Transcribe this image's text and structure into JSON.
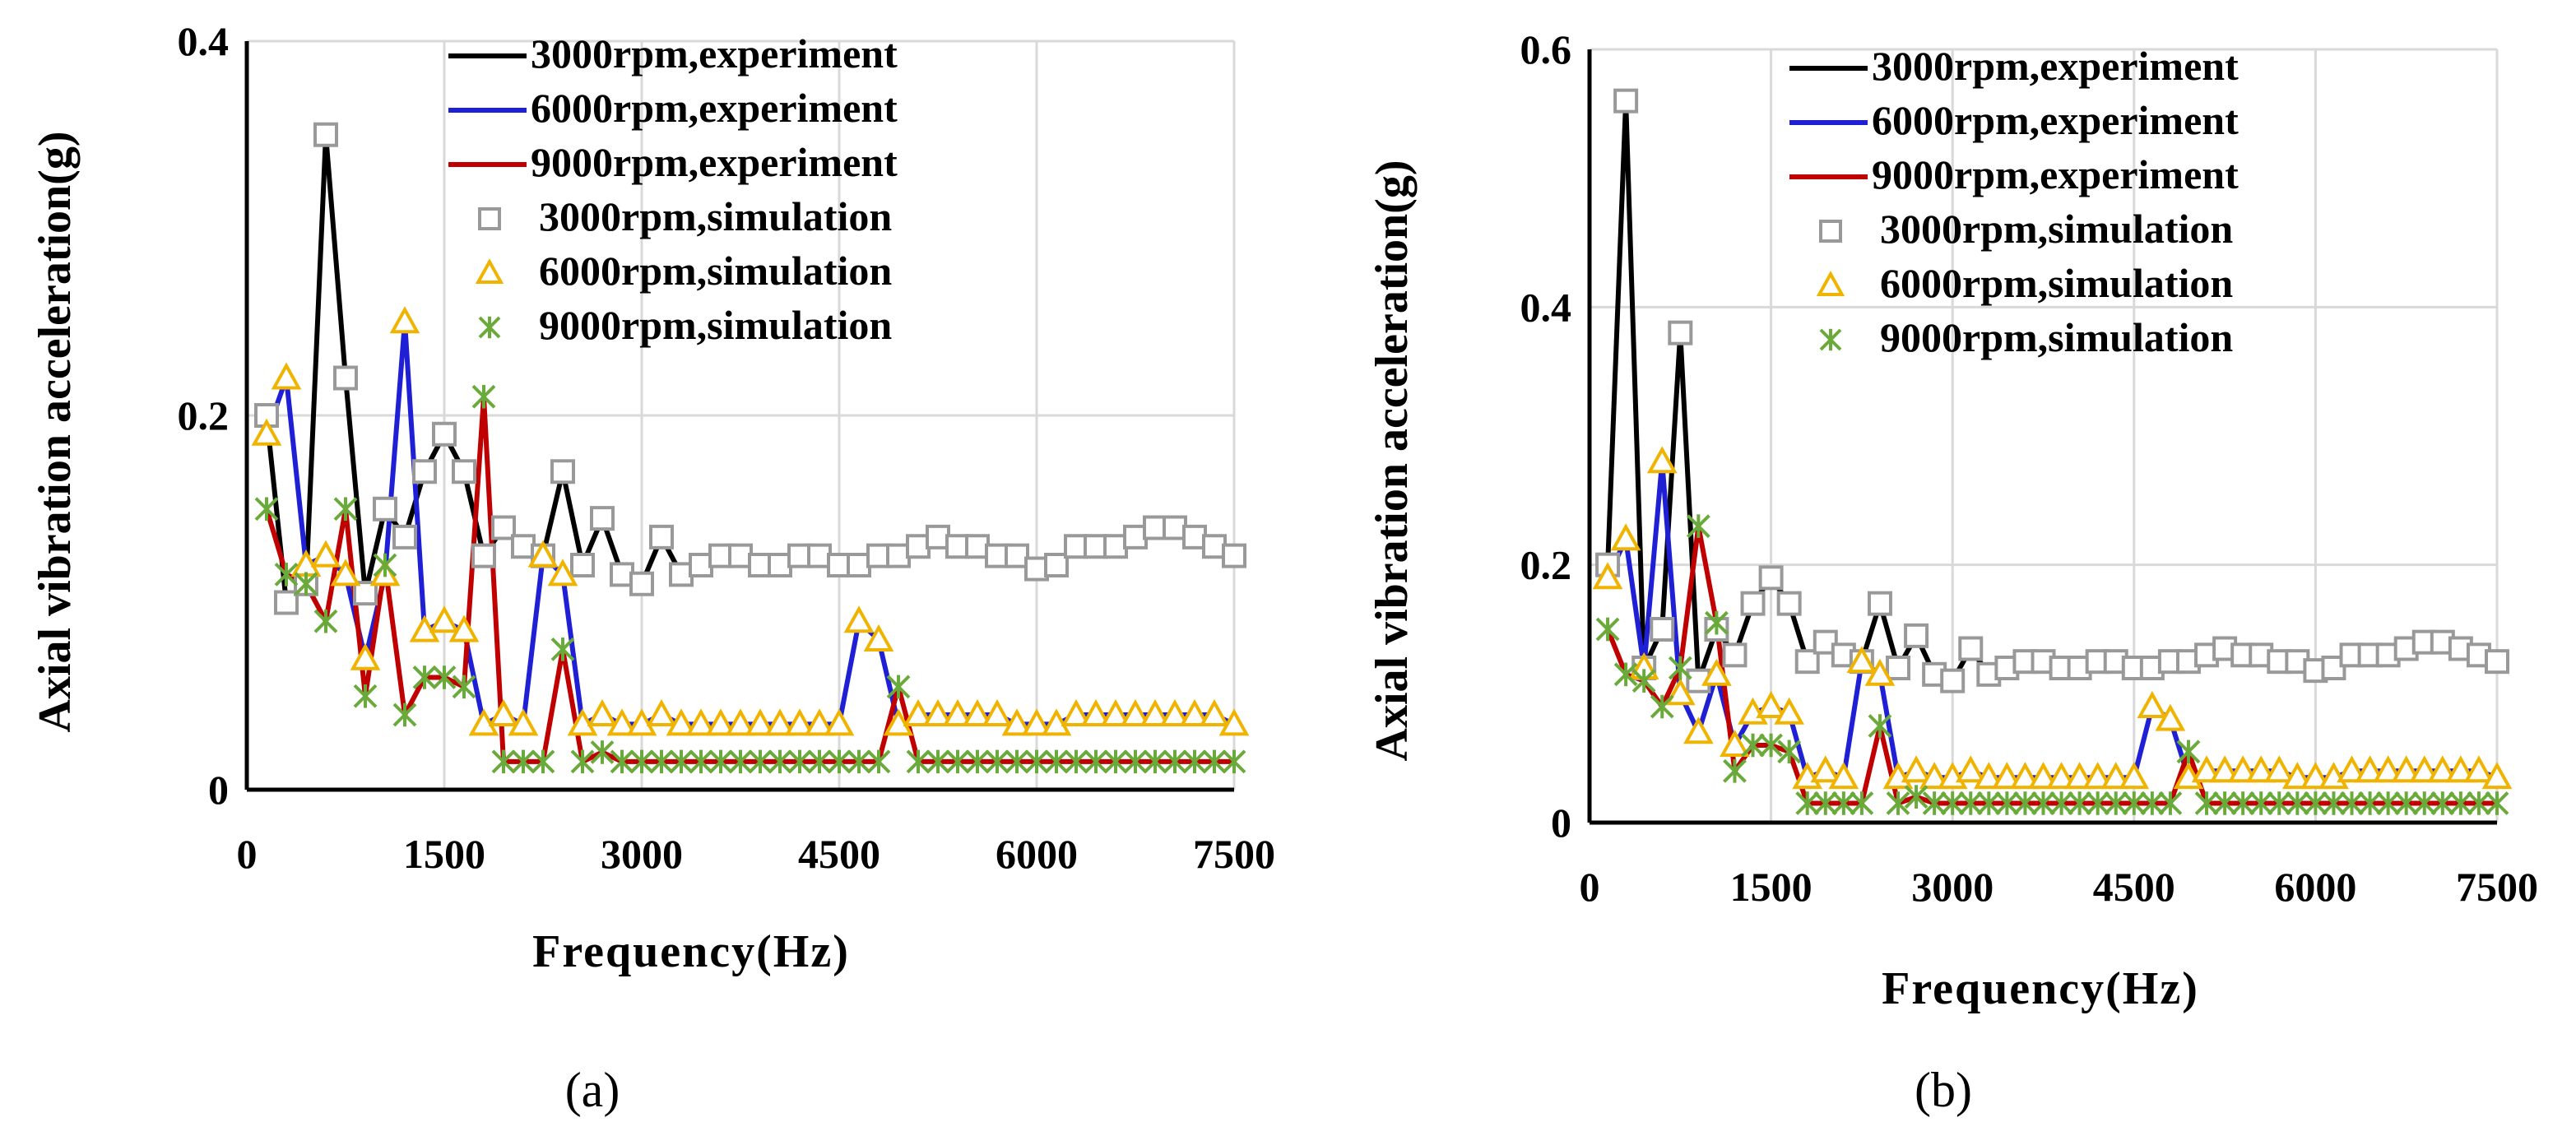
{
  "chart_data": [
    {
      "type": "line",
      "caption": "(a)",
      "xlabel": "Frequency(Hz)",
      "ylabel": "Axial vibration acceleration(g)",
      "xlim": [
        0,
        7500
      ],
      "ylim": [
        0,
        0.4
      ],
      "xticks": [
        0,
        1500,
        3000,
        4500,
        6000,
        7500
      ],
      "yticks": [
        0,
        0.2,
        0.4
      ],
      "xtick_labels": [
        "0",
        "1500",
        "3000",
        "4500",
        "6000",
        "7500"
      ],
      "ytick_labels": [
        "0",
        "0.2",
        "0.4"
      ],
      "grid": true,
      "legend_position": "top-right",
      "x": [
        150,
        300,
        450,
        600,
        750,
        900,
        1050,
        1200,
        1350,
        1500,
        1650,
        1800,
        1950,
        2100,
        2250,
        2400,
        2550,
        2700,
        2850,
        3000,
        3150,
        3300,
        3450,
        3600,
        3750,
        3900,
        4050,
        4200,
        4350,
        4500,
        4650,
        4800,
        4950,
        5100,
        5250,
        5400,
        5550,
        5700,
        5850,
        6000,
        6150,
        6300,
        6450,
        6600,
        6750,
        6900,
        7050,
        7200,
        7350,
        7500
      ],
      "series": [
        {
          "name": "3000rpm,experiment",
          "color": "#000000",
          "marker": "line",
          "values": [
            0.2,
            0.1,
            0.11,
            0.35,
            0.22,
            0.105,
            0.15,
            0.135,
            0.17,
            0.19,
            0.17,
            0.125,
            0.14,
            0.13,
            0.125,
            0.17,
            0.12,
            0.145,
            0.115,
            0.11,
            0.135,
            0.115,
            0.12,
            0.125,
            0.125,
            0.12,
            0.12,
            0.125,
            0.125,
            0.12,
            0.12,
            0.125,
            0.125,
            0.13,
            0.135,
            0.13,
            0.13,
            0.125,
            0.125,
            0.118,
            0.12,
            0.13,
            0.13,
            0.13,
            0.135,
            0.14,
            0.14,
            0.135,
            0.13,
            0.125
          ]
        },
        {
          "name": "6000rpm,experiment",
          "color": "#1f1fd6",
          "marker": "line",
          "values": [
            0.19,
            0.22,
            0.12,
            0.125,
            0.115,
            0.07,
            0.115,
            0.25,
            0.085,
            0.09,
            0.085,
            0.035,
            0.04,
            0.035,
            0.125,
            0.115,
            0.035,
            0.04,
            0.035,
            0.035,
            0.04,
            0.035,
            0.035,
            0.035,
            0.035,
            0.035,
            0.035,
            0.035,
            0.035,
            0.035,
            0.09,
            0.08,
            0.035,
            0.04,
            0.04,
            0.04,
            0.04,
            0.04,
            0.035,
            0.035,
            0.035,
            0.04,
            0.04,
            0.04,
            0.04,
            0.04,
            0.04,
            0.04,
            0.04,
            0.035
          ]
        },
        {
          "name": "9000rpm,experiment",
          "color": "#c00000",
          "marker": "line",
          "values": [
            0.15,
            0.115,
            0.11,
            0.09,
            0.15,
            0.05,
            0.12,
            0.04,
            0.06,
            0.06,
            0.055,
            0.21,
            0.015,
            0.015,
            0.015,
            0.075,
            0.015,
            0.02,
            0.015,
            0.015,
            0.015,
            0.015,
            0.015,
            0.015,
            0.015,
            0.015,
            0.015,
            0.015,
            0.015,
            0.015,
            0.015,
            0.015,
            0.055,
            0.015,
            0.015,
            0.015,
            0.015,
            0.015,
            0.015,
            0.015,
            0.015,
            0.015,
            0.015,
            0.015,
            0.015,
            0.015,
            0.015,
            0.015,
            0.015,
            0.015
          ]
        },
        {
          "name": "3000rpm,simulation",
          "color": "#999999",
          "marker": "square",
          "values": [
            0.2,
            0.1,
            0.11,
            0.35,
            0.22,
            0.105,
            0.15,
            0.135,
            0.17,
            0.19,
            0.17,
            0.125,
            0.14,
            0.13,
            0.125,
            0.17,
            0.12,
            0.145,
            0.115,
            0.11,
            0.135,
            0.115,
            0.12,
            0.125,
            0.125,
            0.12,
            0.12,
            0.125,
            0.125,
            0.12,
            0.12,
            0.125,
            0.125,
            0.13,
            0.135,
            0.13,
            0.13,
            0.125,
            0.125,
            0.118,
            0.12,
            0.13,
            0.13,
            0.13,
            0.135,
            0.14,
            0.14,
            0.135,
            0.13,
            0.125
          ]
        },
        {
          "name": "6000rpm,simulation",
          "color": "#f0b400",
          "marker": "triangle",
          "values": [
            0.19,
            0.22,
            0.12,
            0.125,
            0.115,
            0.07,
            0.115,
            0.25,
            0.085,
            0.09,
            0.085,
            0.035,
            0.04,
            0.035,
            0.125,
            0.115,
            0.035,
            0.04,
            0.035,
            0.035,
            0.04,
            0.035,
            0.035,
            0.035,
            0.035,
            0.035,
            0.035,
            0.035,
            0.035,
            0.035,
            0.09,
            0.08,
            0.035,
            0.04,
            0.04,
            0.04,
            0.04,
            0.04,
            0.035,
            0.035,
            0.035,
            0.04,
            0.04,
            0.04,
            0.04,
            0.04,
            0.04,
            0.04,
            0.04,
            0.035
          ]
        },
        {
          "name": "9000rpm,simulation",
          "color": "#6aaa3a",
          "marker": "star",
          "values": [
            0.15,
            0.115,
            0.11,
            0.09,
            0.15,
            0.05,
            0.12,
            0.04,
            0.06,
            0.06,
            0.055,
            0.21,
            0.015,
            0.015,
            0.015,
            0.075,
            0.015,
            0.02,
            0.015,
            0.015,
            0.015,
            0.015,
            0.015,
            0.015,
            0.015,
            0.015,
            0.015,
            0.015,
            0.015,
            0.015,
            0.015,
            0.015,
            0.055,
            0.015,
            0.015,
            0.015,
            0.015,
            0.015,
            0.015,
            0.015,
            0.015,
            0.015,
            0.015,
            0.015,
            0.015,
            0.015,
            0.015,
            0.015,
            0.015,
            0.015
          ]
        }
      ]
    },
    {
      "type": "line",
      "caption": "(b)",
      "xlabel": "Frequency(Hz)",
      "ylabel": "Axial vibration acceleration(g)",
      "xlim": [
        0,
        7500
      ],
      "ylim": [
        0,
        0.6
      ],
      "xticks": [
        0,
        1500,
        3000,
        4500,
        6000,
        7500
      ],
      "yticks": [
        0,
        0.2,
        0.4,
        0.6
      ],
      "xtick_labels": [
        "0",
        "1500",
        "3000",
        "4500",
        "6000",
        "7500"
      ],
      "ytick_labels": [
        "0",
        "0.2",
        "0.4",
        "0.6"
      ],
      "grid": true,
      "legend_position": "top-right",
      "x": [
        150,
        300,
        450,
        600,
        750,
        900,
        1050,
        1200,
        1350,
        1500,
        1650,
        1800,
        1950,
        2100,
        2250,
        2400,
        2550,
        2700,
        2850,
        3000,
        3150,
        3300,
        3450,
        3600,
        3750,
        3900,
        4050,
        4200,
        4350,
        4500,
        4650,
        4800,
        4950,
        5100,
        5250,
        5400,
        5550,
        5700,
        5850,
        6000,
        6150,
        6300,
        6450,
        6600,
        6750,
        6900,
        7050,
        7200,
        7350,
        7500
      ],
      "series": [
        {
          "name": "3000rpm,experiment",
          "color": "#000000",
          "marker": "line",
          "values": [
            0.2,
            0.56,
            0.12,
            0.15,
            0.38,
            0.11,
            0.15,
            0.13,
            0.17,
            0.19,
            0.17,
            0.125,
            0.14,
            0.13,
            0.125,
            0.17,
            0.12,
            0.145,
            0.115,
            0.11,
            0.135,
            0.115,
            0.12,
            0.125,
            0.125,
            0.12,
            0.12,
            0.125,
            0.125,
            0.12,
            0.12,
            0.125,
            0.125,
            0.13,
            0.135,
            0.13,
            0.13,
            0.125,
            0.125,
            0.118,
            0.12,
            0.13,
            0.13,
            0.13,
            0.135,
            0.14,
            0.14,
            0.135,
            0.13,
            0.125
          ]
        },
        {
          "name": "6000rpm,experiment",
          "color": "#1f1fd6",
          "marker": "line",
          "values": [
            0.19,
            0.22,
            0.12,
            0.28,
            0.1,
            0.07,
            0.115,
            0.06,
            0.085,
            0.09,
            0.085,
            0.035,
            0.04,
            0.035,
            0.125,
            0.115,
            0.035,
            0.04,
            0.035,
            0.035,
            0.04,
            0.035,
            0.035,
            0.035,
            0.035,
            0.035,
            0.035,
            0.035,
            0.035,
            0.035,
            0.09,
            0.08,
            0.035,
            0.04,
            0.04,
            0.04,
            0.04,
            0.04,
            0.035,
            0.035,
            0.035,
            0.04,
            0.04,
            0.04,
            0.04,
            0.04,
            0.04,
            0.04,
            0.04,
            0.035
          ]
        },
        {
          "name": "9000rpm,experiment",
          "color": "#c00000",
          "marker": "line",
          "values": [
            0.15,
            0.115,
            0.11,
            0.09,
            0.12,
            0.23,
            0.155,
            0.04,
            0.06,
            0.06,
            0.055,
            0.015,
            0.015,
            0.015,
            0.015,
            0.075,
            0.015,
            0.02,
            0.015,
            0.015,
            0.015,
            0.015,
            0.015,
            0.015,
            0.015,
            0.015,
            0.015,
            0.015,
            0.015,
            0.015,
            0.015,
            0.015,
            0.055,
            0.015,
            0.015,
            0.015,
            0.015,
            0.015,
            0.015,
            0.015,
            0.015,
            0.015,
            0.015,
            0.015,
            0.015,
            0.015,
            0.015,
            0.015,
            0.015,
            0.015
          ]
        },
        {
          "name": "3000rpm,simulation",
          "color": "#999999",
          "marker": "square",
          "values": [
            0.2,
            0.56,
            0.12,
            0.15,
            0.38,
            0.11,
            0.15,
            0.13,
            0.17,
            0.19,
            0.17,
            0.125,
            0.14,
            0.13,
            0.125,
            0.17,
            0.12,
            0.145,
            0.115,
            0.11,
            0.135,
            0.115,
            0.12,
            0.125,
            0.125,
            0.12,
            0.12,
            0.125,
            0.125,
            0.12,
            0.12,
            0.125,
            0.125,
            0.13,
            0.135,
            0.13,
            0.13,
            0.125,
            0.125,
            0.118,
            0.12,
            0.13,
            0.13,
            0.13,
            0.135,
            0.14,
            0.14,
            0.135,
            0.13,
            0.125
          ]
        },
        {
          "name": "6000rpm,simulation",
          "color": "#f0b400",
          "marker": "triangle",
          "values": [
            0.19,
            0.22,
            0.12,
            0.28,
            0.1,
            0.07,
            0.115,
            0.06,
            0.085,
            0.09,
            0.085,
            0.035,
            0.04,
            0.035,
            0.125,
            0.115,
            0.035,
            0.04,
            0.035,
            0.035,
            0.04,
            0.035,
            0.035,
            0.035,
            0.035,
            0.035,
            0.035,
            0.035,
            0.035,
            0.035,
            0.09,
            0.08,
            0.035,
            0.04,
            0.04,
            0.04,
            0.04,
            0.04,
            0.035,
            0.035,
            0.035,
            0.04,
            0.04,
            0.04,
            0.04,
            0.04,
            0.04,
            0.04,
            0.04,
            0.035
          ]
        },
        {
          "name": "9000rpm,simulation",
          "color": "#6aaa3a",
          "marker": "star",
          "values": [
            0.15,
            0.115,
            0.11,
            0.09,
            0.12,
            0.23,
            0.155,
            0.04,
            0.06,
            0.06,
            0.055,
            0.015,
            0.015,
            0.015,
            0.015,
            0.075,
            0.015,
            0.02,
            0.015,
            0.015,
            0.015,
            0.015,
            0.015,
            0.015,
            0.015,
            0.015,
            0.015,
            0.015,
            0.015,
            0.015,
            0.015,
            0.015,
            0.055,
            0.015,
            0.015,
            0.015,
            0.015,
            0.015,
            0.015,
            0.015,
            0.015,
            0.015,
            0.015,
            0.015,
            0.015,
            0.015,
            0.015,
            0.015,
            0.015,
            0.015
          ]
        }
      ]
    }
  ]
}
